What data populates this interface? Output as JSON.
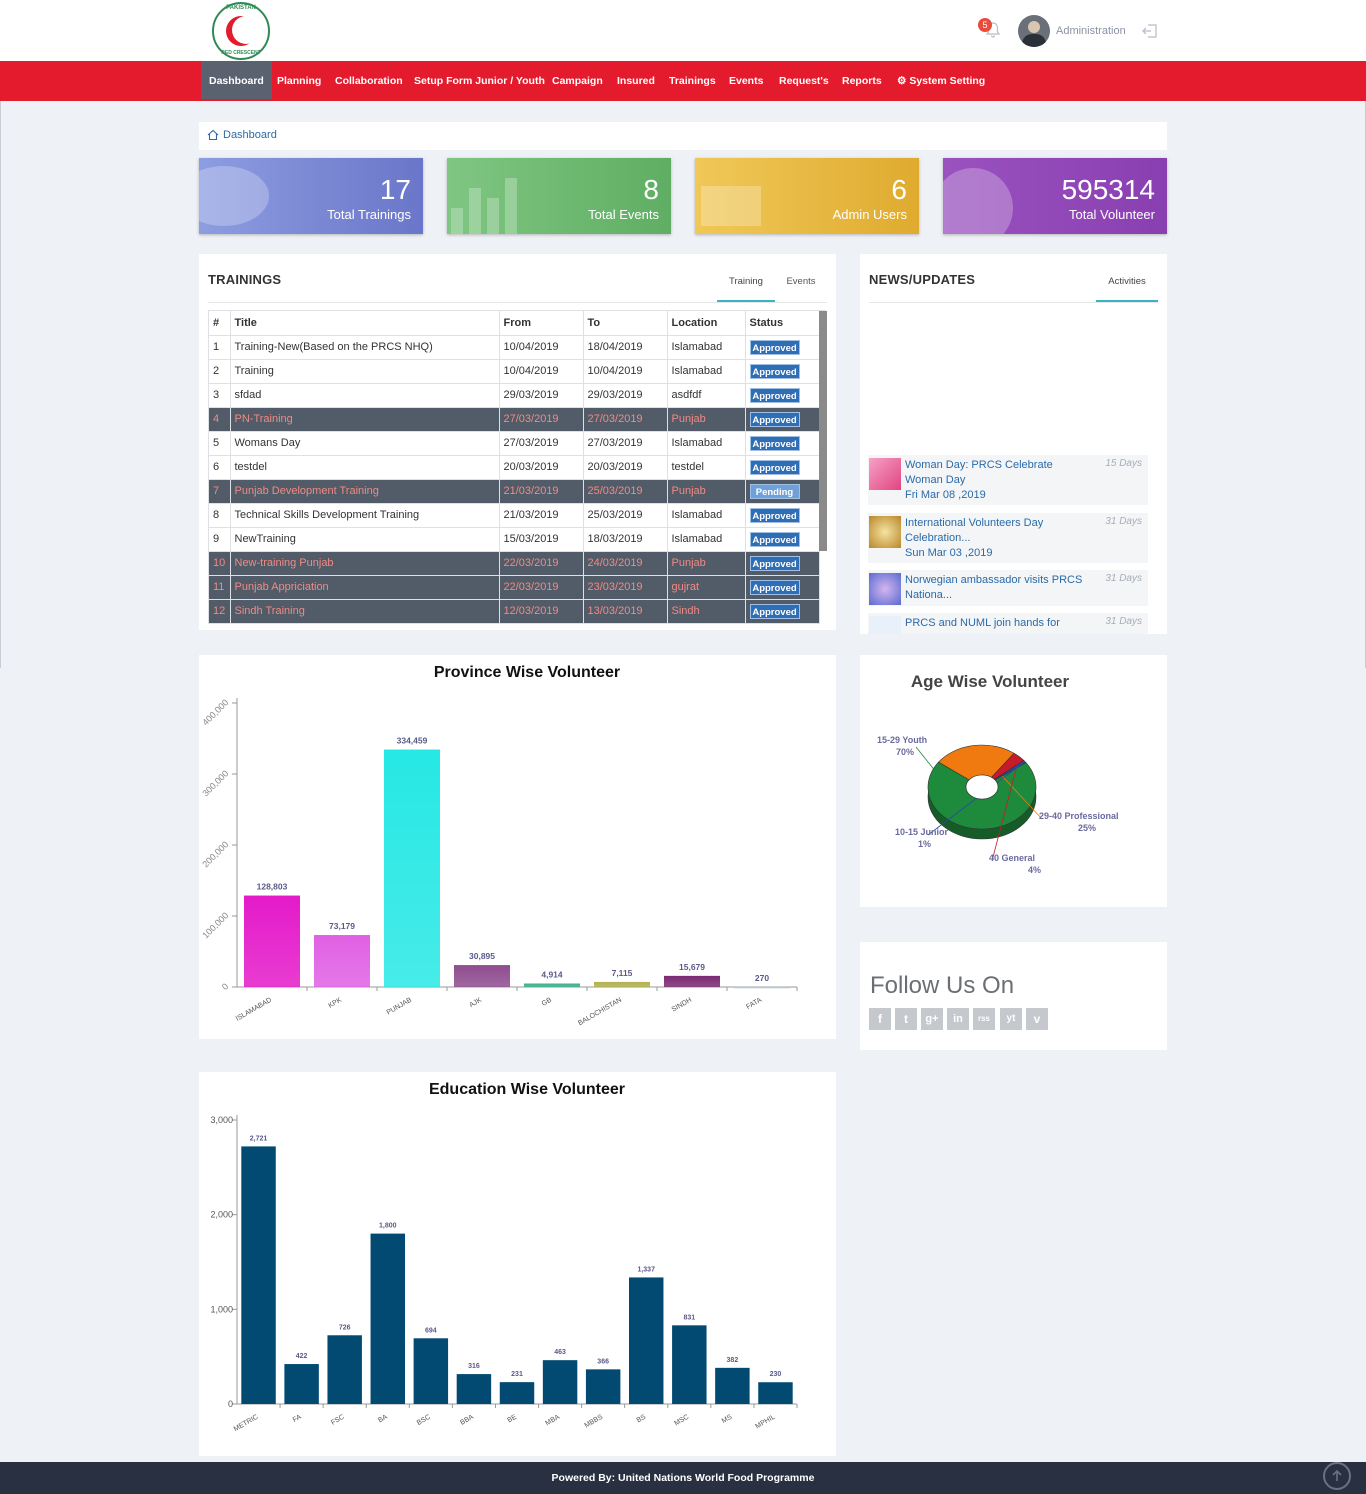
{
  "header": {
    "logo_top": "PAKISTAN",
    "logo_bottom": "RED CRESCENT",
    "notifications": "5",
    "user": "Administration"
  },
  "nav": {
    "items": [
      "Dashboard",
      "Planning",
      "Collaboration",
      "Setup Form Junior / Youth",
      "Campaign",
      "Insured",
      "Trainings",
      "Events",
      "Request's",
      "Reports",
      "System Setting"
    ]
  },
  "breadcrumb": "Dashboard",
  "stats": [
    {
      "value": "17",
      "label": "Total Trainings",
      "color": "#7484d3"
    },
    {
      "value": "8",
      "label": "Total Events",
      "color": "#6cb76e"
    },
    {
      "value": "6",
      "label": "Admin Users",
      "color": "#e3b43e"
    },
    {
      "value": "595314",
      "label": "Total Volunteer",
      "color": "#8f44b4"
    }
  ],
  "trainings": {
    "title": "TRAININGS",
    "tabs": [
      "Training",
      "Events"
    ],
    "columns": [
      "#",
      "Title",
      "From",
      "To",
      "Location",
      "Status"
    ],
    "rows": [
      {
        "n": "1",
        "title": "Training-New(Based on the PRCS NHQ)",
        "from": "10/04/2019",
        "to": "18/04/2019",
        "loc": "Islamabad",
        "status": "Approved",
        "dark": false
      },
      {
        "n": "2",
        "title": "Training",
        "from": "10/04/2019",
        "to": "10/04/2019",
        "loc": "Islamabad",
        "status": "Approved",
        "dark": false
      },
      {
        "n": "3",
        "title": "sfdad",
        "from": "29/03/2019",
        "to": "29/03/2019",
        "loc": "asdfdf",
        "status": "Approved",
        "dark": false
      },
      {
        "n": "4",
        "title": "PN-Training",
        "from": "27/03/2019",
        "to": "27/03/2019",
        "loc": "Punjab",
        "status": "Approved",
        "dark": true
      },
      {
        "n": "5",
        "title": "Womans Day",
        "from": "27/03/2019",
        "to": "27/03/2019",
        "loc": "Islamabad",
        "status": "Approved",
        "dark": false
      },
      {
        "n": "6",
        "title": "testdel",
        "from": "20/03/2019",
        "to": "20/03/2019",
        "loc": "testdel",
        "status": "Approved",
        "dark": false
      },
      {
        "n": "7",
        "title": "Punjab Development Training",
        "from": "21/03/2019",
        "to": "25/03/2019",
        "loc": "Punjab",
        "status": "Pending",
        "dark": true
      },
      {
        "n": "8",
        "title": "Technical Skills Development Training",
        "from": "21/03/2019",
        "to": "25/03/2019",
        "loc": "Islamabad",
        "status": "Approved",
        "dark": false
      },
      {
        "n": "9",
        "title": "NewTraining",
        "from": "15/03/2019",
        "to": "18/03/2019",
        "loc": "Islamabad",
        "status": "Approved",
        "dark": false
      },
      {
        "n": "10",
        "title": "New-training Punjab",
        "from": "22/03/2019",
        "to": "24/03/2019",
        "loc": "Punjab",
        "status": "Approved",
        "dark": true
      },
      {
        "n": "11",
        "title": "Punjab Appriciation",
        "from": "22/03/2019",
        "to": "23/03/2019",
        "loc": "gujrat",
        "status": "Approved",
        "dark": true
      },
      {
        "n": "12",
        "title": "Sindh Training",
        "from": "12/03/2019",
        "to": "13/03/2019",
        "loc": "Sindh",
        "status": "Approved",
        "dark": true
      }
    ]
  },
  "news": {
    "title": "NEWS/UPDATES",
    "tab": "Activities",
    "items": [
      {
        "title": "Woman Day: PRCS Celebrate Woman Day",
        "date": "Fri Mar 08 ,2019",
        "ago": "15 Days"
      },
      {
        "title": "International Volunteers Day Celebration...",
        "date": "Sun Mar 03 ,2019",
        "ago": "31 Days"
      },
      {
        "title": "Norwegian ambassador visits PRCS Nationa...",
        "date": "",
        "ago": "31 Days"
      },
      {
        "title": "PRCS and NUML join hands for",
        "date": "",
        "ago": "31 Days"
      }
    ]
  },
  "follow": {
    "title": "Follow Us On",
    "icons": [
      "f",
      "t",
      "g+",
      "in",
      "rss",
      "yt",
      "v"
    ]
  },
  "footer": "Powered By: United Nations World Food Programme",
  "chart_data": [
    {
      "type": "bar",
      "title": "Province Wise Volunteer",
      "categories": [
        "ISLAMABAD",
        "KPK",
        "PUNJAB",
        "AJK",
        "GB",
        "BALOCHISTAN",
        "SINDH",
        "FATA"
      ],
      "values": [
        128803,
        73179,
        334459,
        30895,
        4914,
        7115,
        15679,
        270
      ],
      "labels": [
        "128,803",
        "73,179",
        "334,459",
        "30,895",
        "4,914",
        "7,115",
        "15,679",
        "270"
      ],
      "ylim": [
        0,
        400000
      ],
      "yticks": [
        "0",
        "100,000",
        "200,000",
        "300,000",
        "400,000"
      ],
      "colors": [
        "#e41ac9",
        "#e060e4",
        "#26e8e4",
        "#8f4d8f",
        "#3cb08a",
        "#b2b050",
        "#7a2a72",
        "#b0c4d4"
      ]
    },
    {
      "type": "bar",
      "title": "Education Wise Volunteer",
      "categories": [
        "METRIC",
        "FA",
        "FSC",
        "BA",
        "BSC",
        "BBA",
        "BE",
        "MBA",
        "MBBS",
        "BS",
        "MSC",
        "MS",
        "MPHIL"
      ],
      "values": [
        2721,
        422,
        726,
        1800,
        694,
        316,
        231,
        463,
        366,
        1337,
        831,
        382,
        230
      ],
      "labels": [
        "2,721",
        "422",
        "726",
        "1,800",
        "694",
        "316",
        "231",
        "463",
        "366",
        "1,337",
        "831",
        "382",
        "230"
      ],
      "ylim": [
        0,
        3000
      ],
      "yticks": [
        "0",
        "1,000",
        "2,000",
        "3,000"
      ],
      "color": "#034a72"
    },
    {
      "type": "pie",
      "title": "Age Wise Volunteer",
      "slices": [
        {
          "name": "15-29 Youth",
          "value": 70,
          "label": "70%",
          "color": "#1e8a3c"
        },
        {
          "name": "29-40 Professional",
          "value": 25,
          "label": "25%",
          "color": "#f07a10"
        },
        {
          "name": "40 General",
          "value": 4,
          "label": "4%",
          "color": "#c81a28"
        },
        {
          "name": "10-15 Junior",
          "value": 1,
          "label": "1%",
          "color": "#2a4aa8"
        }
      ]
    }
  ]
}
